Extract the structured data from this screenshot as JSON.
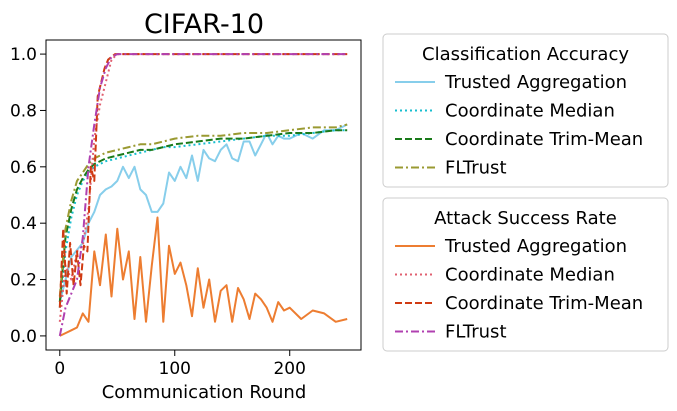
{
  "chart_data": {
    "type": "line",
    "title": "CIFAR-10",
    "xlabel": "Communication Round",
    "ylabel": "",
    "xlim": [
      -12,
      262
    ],
    "ylim": [
      -0.05,
      1.05
    ],
    "xticks": [
      0,
      100,
      200
    ],
    "yticks": [
      0.0,
      0.2,
      0.4,
      0.6,
      0.8,
      1.0
    ],
    "xtick_labels": [
      "0",
      "100",
      "200"
    ],
    "ytick_labels": [
      "0.0",
      "0.2",
      "0.4",
      "0.6",
      "0.8",
      "1.0"
    ],
    "grid": false,
    "legends": [
      {
        "title": "Classification Accuracy",
        "placement": "outside right, upper",
        "entries": [
          {
            "label": "Trusted Aggregation",
            "color": "#87ceeb",
            "style": "solid"
          },
          {
            "label": "Coordinate Median",
            "color": "#17becf",
            "style": "dotted"
          },
          {
            "label": "Coordinate Trim-Mean",
            "color": "#1a7a1a",
            "style": "dashed"
          },
          {
            "label": "FLTrust",
            "color": "#9a9a32",
            "style": "dashdot"
          }
        ]
      },
      {
        "title": "Attack Success Rate",
        "placement": "outside right, lower",
        "entries": [
          {
            "label": "Trusted Aggregation",
            "color": "#ed7d31",
            "style": "solid"
          },
          {
            "label": "Coordinate Median",
            "color": "#e06070",
            "style": "dotted"
          },
          {
            "label": "Coordinate Trim-Mean",
            "color": "#d03a12",
            "style": "dashed"
          },
          {
            "label": "FLTrust",
            "color": "#b040b0",
            "style": "dashdot"
          }
        ]
      }
    ],
    "series": [
      {
        "group": "Classification Accuracy",
        "name": "Trusted Aggregation",
        "color": "#87ceeb",
        "style": "solid",
        "x": [
          0,
          10,
          20,
          25,
          30,
          35,
          40,
          45,
          50,
          55,
          60,
          65,
          70,
          75,
          80,
          85,
          90,
          95,
          100,
          105,
          110,
          115,
          120,
          125,
          130,
          135,
          140,
          145,
          150,
          155,
          160,
          165,
          170,
          175,
          180,
          185,
          190,
          195,
          200,
          210,
          220,
          230,
          240,
          245,
          250
        ],
        "y": [
          0.12,
          0.28,
          0.33,
          0.4,
          0.44,
          0.5,
          0.52,
          0.53,
          0.55,
          0.6,
          0.56,
          0.6,
          0.52,
          0.5,
          0.44,
          0.44,
          0.47,
          0.58,
          0.55,
          0.6,
          0.56,
          0.64,
          0.55,
          0.66,
          0.63,
          0.62,
          0.66,
          0.68,
          0.63,
          0.62,
          0.69,
          0.69,
          0.64,
          0.68,
          0.72,
          0.68,
          0.71,
          0.7,
          0.7,
          0.72,
          0.7,
          0.73,
          0.73,
          0.74,
          0.75
        ]
      },
      {
        "group": "Classification Accuracy",
        "name": "Coordinate Median",
        "color": "#17becf",
        "style": "dotted",
        "x": [
          0,
          5,
          10,
          15,
          20,
          25,
          30,
          40,
          50,
          60,
          70,
          80,
          90,
          100,
          120,
          140,
          160,
          180,
          200,
          220,
          240,
          250
        ],
        "y": [
          0.1,
          0.3,
          0.42,
          0.5,
          0.55,
          0.58,
          0.6,
          0.62,
          0.63,
          0.64,
          0.65,
          0.66,
          0.67,
          0.67,
          0.68,
          0.69,
          0.7,
          0.71,
          0.71,
          0.72,
          0.73,
          0.73
        ]
      },
      {
        "group": "Classification Accuracy",
        "name": "Coordinate Trim-Mean",
        "color": "#1a7a1a",
        "style": "dashed",
        "x": [
          0,
          5,
          10,
          15,
          20,
          25,
          30,
          40,
          50,
          60,
          70,
          80,
          90,
          100,
          120,
          140,
          160,
          180,
          200,
          220,
          240,
          250
        ],
        "y": [
          0.12,
          0.35,
          0.45,
          0.52,
          0.56,
          0.59,
          0.61,
          0.63,
          0.64,
          0.65,
          0.66,
          0.66,
          0.67,
          0.68,
          0.69,
          0.7,
          0.7,
          0.71,
          0.72,
          0.72,
          0.73,
          0.73
        ]
      },
      {
        "group": "Classification Accuracy",
        "name": "FLTrust",
        "color": "#9a9a32",
        "style": "dashdot",
        "x": [
          0,
          5,
          10,
          15,
          20,
          25,
          30,
          40,
          50,
          60,
          70,
          80,
          90,
          100,
          120,
          140,
          160,
          180,
          200,
          220,
          240,
          250
        ],
        "y": [
          0.14,
          0.38,
          0.48,
          0.55,
          0.58,
          0.61,
          0.63,
          0.65,
          0.66,
          0.67,
          0.68,
          0.68,
          0.69,
          0.7,
          0.71,
          0.71,
          0.72,
          0.72,
          0.73,
          0.74,
          0.74,
          0.75
        ]
      },
      {
        "group": "Attack Success Rate",
        "name": "Trusted Aggregation",
        "color": "#ed7d31",
        "style": "solid",
        "x": [
          0,
          5,
          10,
          15,
          20,
          25,
          30,
          35,
          40,
          45,
          50,
          55,
          60,
          65,
          70,
          75,
          80,
          85,
          90,
          95,
          100,
          105,
          110,
          115,
          120,
          125,
          130,
          135,
          140,
          145,
          150,
          155,
          160,
          165,
          170,
          175,
          180,
          185,
          190,
          195,
          200,
          210,
          220,
          230,
          240,
          250
        ],
        "y": [
          0.0,
          0.01,
          0.02,
          0.03,
          0.08,
          0.05,
          0.3,
          0.18,
          0.36,
          0.14,
          0.38,
          0.2,
          0.3,
          0.06,
          0.28,
          0.05,
          0.25,
          0.42,
          0.05,
          0.32,
          0.22,
          0.26,
          0.18,
          0.07,
          0.24,
          0.1,
          0.2,
          0.05,
          0.16,
          0.18,
          0.05,
          0.17,
          0.13,
          0.06,
          0.15,
          0.13,
          0.1,
          0.05,
          0.12,
          0.09,
          0.1,
          0.06,
          0.09,
          0.08,
          0.05,
          0.06
        ]
      },
      {
        "group": "Attack Success Rate",
        "name": "Coordinate Median",
        "color": "#e06070",
        "style": "dotted",
        "x": [
          0,
          5,
          10,
          15,
          20,
          25,
          30,
          35,
          40,
          45,
          50,
          60,
          80,
          100,
          150,
          200,
          250
        ],
        "y": [
          0.05,
          0.25,
          0.2,
          0.3,
          0.32,
          0.45,
          0.7,
          0.82,
          0.9,
          0.98,
          1.0,
          1.0,
          1.0,
          1.0,
          1.0,
          1.0,
          1.0
        ]
      },
      {
        "group": "Attack Success Rate",
        "name": "Coordinate Trim-Mean",
        "color": "#d03a12",
        "style": "dashed",
        "x": [
          0,
          3,
          6,
          9,
          12,
          15,
          18,
          21,
          24,
          27,
          30,
          33,
          36,
          39,
          42,
          45,
          48,
          50,
          60,
          80,
          100,
          150,
          200,
          250
        ],
        "y": [
          0.1,
          0.38,
          0.15,
          0.33,
          0.18,
          0.3,
          0.18,
          0.32,
          0.3,
          0.6,
          0.55,
          0.85,
          0.9,
          0.95,
          0.98,
          0.99,
          1.0,
          1.0,
          1.0,
          1.0,
          1.0,
          1.0,
          1.0,
          1.0
        ]
      },
      {
        "group": "Attack Success Rate",
        "name": "FLTrust",
        "color": "#b040b0",
        "style": "dashdot",
        "x": [
          0,
          5,
          10,
          15,
          20,
          25,
          30,
          35,
          40,
          45,
          50,
          60,
          80,
          100,
          150,
          200,
          250
        ],
        "y": [
          0.0,
          0.1,
          0.15,
          0.2,
          0.35,
          0.6,
          0.75,
          0.88,
          0.95,
          0.99,
          1.0,
          1.0,
          1.0,
          1.0,
          1.0,
          1.0,
          1.0
        ]
      }
    ]
  }
}
